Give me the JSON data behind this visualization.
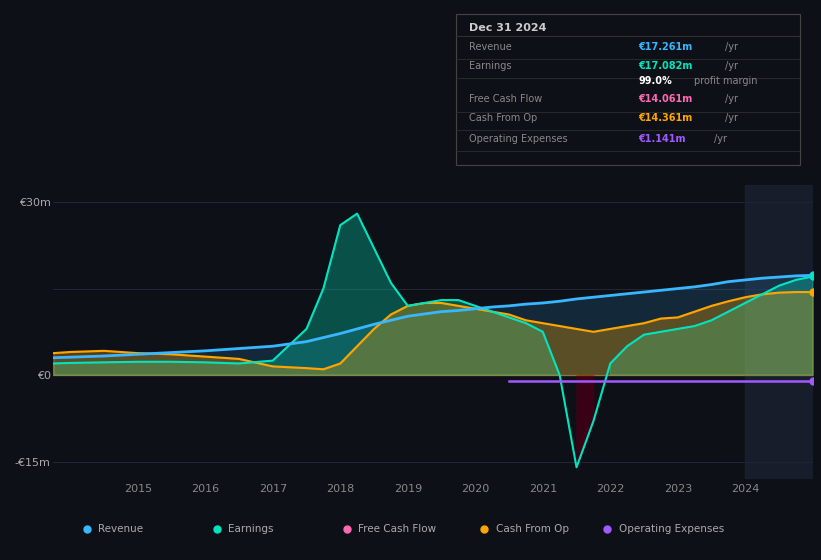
{
  "bg_color": "#0d1117",
  "plot_bg": "#0d1117",
  "title_box": {
    "date": "Dec 31 2024",
    "rows": [
      {
        "label": "Revenue",
        "value": "€17.261m",
        "unit": "/yr",
        "color": "#38b6ff"
      },
      {
        "label": "Earnings",
        "value": "€17.082m",
        "unit": "/yr",
        "color": "#00e5c0"
      },
      {
        "label": "",
        "value": "99.0%",
        "unit": " profit margin",
        "color": "#ffffff"
      },
      {
        "label": "Free Cash Flow",
        "value": "€14.061m",
        "unit": "/yr",
        "color": "#ff69b4"
      },
      {
        "label": "Cash From Op",
        "value": "€14.361m",
        "unit": "/yr",
        "color": "#ffa500"
      },
      {
        "label": "Operating Expenses",
        "value": "€1.141m",
        "unit": "/yr",
        "color": "#a259ff"
      }
    ]
  },
  "years": [
    2013.75,
    2014.0,
    2014.5,
    2015.0,
    2015.5,
    2016.0,
    2016.25,
    2016.5,
    2017.0,
    2017.5,
    2017.75,
    2018.0,
    2018.25,
    2018.5,
    2018.75,
    2019.0,
    2019.25,
    2019.5,
    2019.75,
    2020.0,
    2020.25,
    2020.5,
    2020.75,
    2021.0,
    2021.25,
    2021.5,
    2021.75,
    2022.0,
    2022.25,
    2022.5,
    2022.75,
    2023.0,
    2023.25,
    2023.5,
    2023.75,
    2024.0,
    2024.25,
    2024.5,
    2024.75,
    2025.0
  ],
  "revenue": [
    3.0,
    3.1,
    3.3,
    3.6,
    3.9,
    4.2,
    4.4,
    4.6,
    5.0,
    5.8,
    6.5,
    7.2,
    8.0,
    8.8,
    9.5,
    10.2,
    10.6,
    11.0,
    11.2,
    11.5,
    11.8,
    12.0,
    12.3,
    12.5,
    12.8,
    13.2,
    13.5,
    13.8,
    14.1,
    14.4,
    14.7,
    15.0,
    15.3,
    15.7,
    16.2,
    16.5,
    16.8,
    17.0,
    17.2,
    17.3
  ],
  "earnings": [
    2.0,
    2.1,
    2.2,
    2.3,
    2.3,
    2.2,
    2.1,
    2.0,
    2.5,
    8.0,
    15.0,
    26.0,
    28.0,
    22.0,
    16.0,
    12.0,
    12.5,
    13.0,
    13.0,
    12.0,
    11.0,
    10.0,
    9.0,
    7.5,
    0.0,
    -16.0,
    -8.0,
    2.0,
    5.0,
    7.0,
    7.5,
    8.0,
    8.5,
    9.5,
    11.0,
    12.5,
    14.0,
    15.5,
    16.5,
    17.1
  ],
  "cash_from_op": [
    3.8,
    4.0,
    4.2,
    3.8,
    3.6,
    3.2,
    3.0,
    2.8,
    1.5,
    1.2,
    1.0,
    2.0,
    5.0,
    8.0,
    10.5,
    12.0,
    12.5,
    12.5,
    12.0,
    11.5,
    11.0,
    10.5,
    9.5,
    9.0,
    8.5,
    8.0,
    7.5,
    8.0,
    8.5,
    9.0,
    9.8,
    10.0,
    11.0,
    12.0,
    12.8,
    13.5,
    14.0,
    14.3,
    14.4,
    14.4
  ],
  "op_exp_start": 2020.5,
  "op_exp_end": 2025.0,
  "op_exp_y": -1.1,
  "colors": {
    "revenue": "#38b6ff",
    "earnings": "#00e5c0",
    "free_cash_flow": "#ff69b4",
    "cash_from_op": "#ffa500",
    "operating_expenses": "#a259ff"
  },
  "ylim": [
    -18,
    33
  ],
  "yticks": [
    -15,
    0,
    30
  ],
  "ytick_labels": [
    "-€15m",
    "€0",
    "€30m"
  ],
  "xticks": [
    2015,
    2016,
    2017,
    2018,
    2019,
    2020,
    2021,
    2022,
    2023,
    2024
  ],
  "xmin": 2013.75,
  "xmax": 2025.0,
  "shade_start": 2024.0,
  "legend_items": [
    {
      "label": "Revenue",
      "color": "#38b6ff"
    },
    {
      "label": "Earnings",
      "color": "#00e5c0"
    },
    {
      "label": "Free Cash Flow",
      "color": "#ff69b4"
    },
    {
      "label": "Cash From Op",
      "color": "#ffa500"
    },
    {
      "label": "Operating Expenses",
      "color": "#a259ff"
    }
  ]
}
